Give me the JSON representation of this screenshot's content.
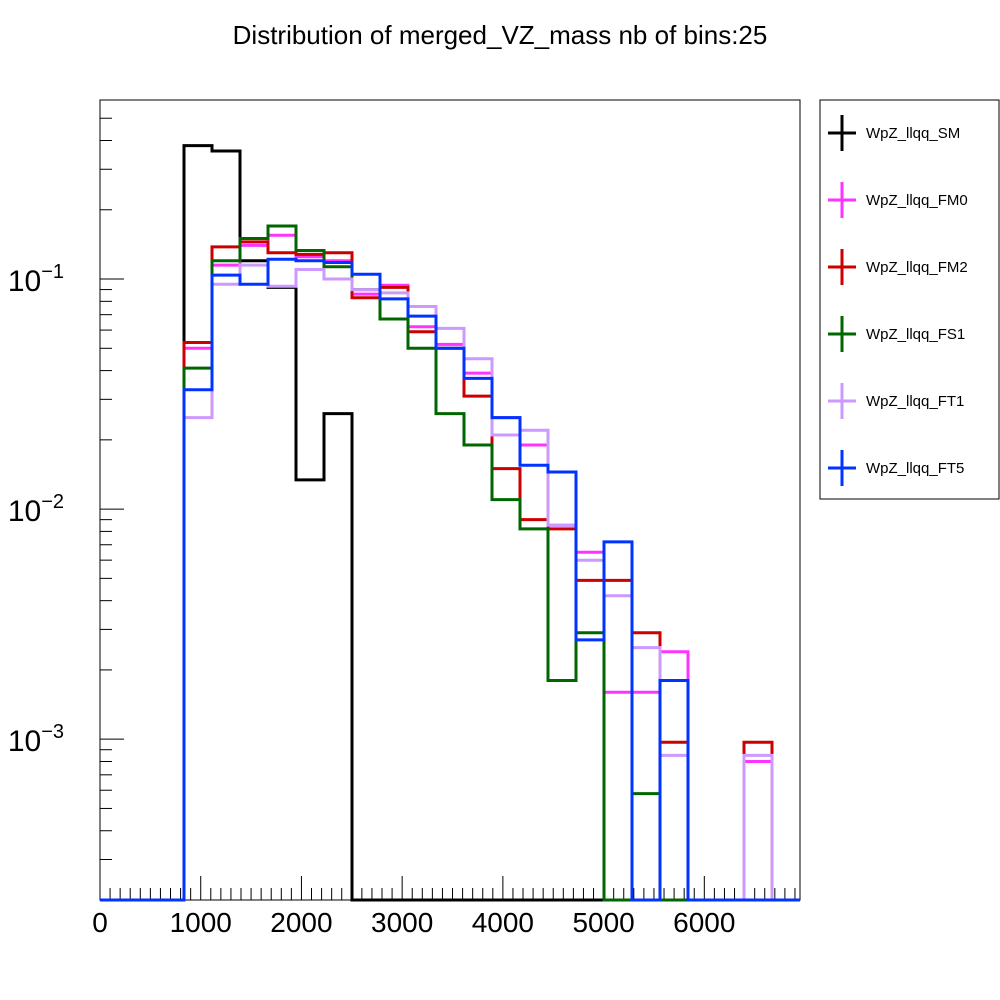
{
  "chart_data": {
    "type": "line",
    "title": "Distribution of merged_VZ_mass nb of bins:25",
    "xlabel": "",
    "ylabel": "",
    "xlim": [
      0,
      6950
    ],
    "ylim": [
      0.0002,
      0.6
    ],
    "y_scale": "log",
    "grid": false,
    "legend_position": "outside-right",
    "x_ticks": [
      "0",
      "1000",
      "2000",
      "3000",
      "4000",
      "5000",
      "6000"
    ],
    "y_ticks": [
      {
        "base": "10",
        "exp": "−1",
        "value": 0.1
      },
      {
        "base": "10",
        "exp": "−2",
        "value": 0.01
      },
      {
        "base": "10",
        "exp": "−3",
        "value": 0.001
      }
    ],
    "bin_edges": [
      0,
      278,
      556,
      834,
      1112,
      1390,
      1668,
      1946,
      2224,
      2502,
      2780,
      3058,
      3336,
      3614,
      3892,
      4170,
      4448,
      4726,
      5004,
      5282,
      5560,
      5838,
      6116,
      6394,
      6672,
      6950
    ],
    "series": [
      {
        "name": "WpZ_llqq_SM",
        "color": "#000000",
        "values": [
          0,
          0,
          0,
          0.38,
          0.36,
          0.12,
          0.092,
          0.0134,
          0.026,
          0,
          0,
          0,
          0,
          0,
          0,
          0,
          0,
          0,
          0,
          0,
          0,
          0,
          0,
          0,
          0
        ]
      },
      {
        "name": "WpZ_llqq_FM0",
        "color": "#ff33ff",
        "values": [
          0,
          0,
          0,
          0.05,
          0.115,
          0.14,
          0.155,
          0.125,
          0.12,
          0.086,
          0.094,
          0.062,
          0.052,
          0.039,
          0.025,
          0.019,
          0.0085,
          0.0065,
          0.0016,
          0.0016,
          0.0024,
          0,
          0,
          0.0008,
          0
        ]
      },
      {
        "name": "WpZ_llqq_FM2",
        "color": "#cc0000",
        "values": [
          0,
          0,
          0,
          0.053,
          0.138,
          0.145,
          0.13,
          0.128,
          0.13,
          0.083,
          0.092,
          0.059,
          0.05,
          0.031,
          0.015,
          0.009,
          0.0082,
          0.0049,
          0.0049,
          0.0029,
          0.00097,
          0,
          0,
          0.00097,
          0
        ]
      },
      {
        "name": "WpZ_llqq_FS1",
        "color": "#006600",
        "values": [
          0,
          0,
          0,
          0.041,
          0.12,
          0.15,
          0.17,
          0.133,
          0.113,
          0.09,
          0.067,
          0.05,
          0.026,
          0.019,
          0.011,
          0.0082,
          0.0018,
          0.0029,
          0,
          0.00058,
          0,
          0,
          0,
          0,
          0
        ]
      },
      {
        "name": "WpZ_llqq_FT1",
        "color": "#cc99ff",
        "values": [
          0,
          0,
          0,
          0.025,
          0.095,
          0.115,
          0.093,
          0.11,
          0.1,
          0.09,
          0.087,
          0.076,
          0.061,
          0.045,
          0.021,
          0.022,
          0.0085,
          0.006,
          0.0042,
          0.0025,
          0.00085,
          0,
          0,
          0.00085,
          0
        ]
      },
      {
        "name": "WpZ_llqq_FT5",
        "color": "#0033ff",
        "values": [
          0,
          0,
          0,
          0.033,
          0.104,
          0.095,
          0.122,
          0.12,
          0.118,
          0.105,
          0.082,
          0.069,
          0.05,
          0.037,
          0.025,
          0.0155,
          0.0145,
          0.0027,
          0.0072,
          0,
          0.0018,
          0,
          0,
          0,
          0
        ]
      }
    ]
  }
}
